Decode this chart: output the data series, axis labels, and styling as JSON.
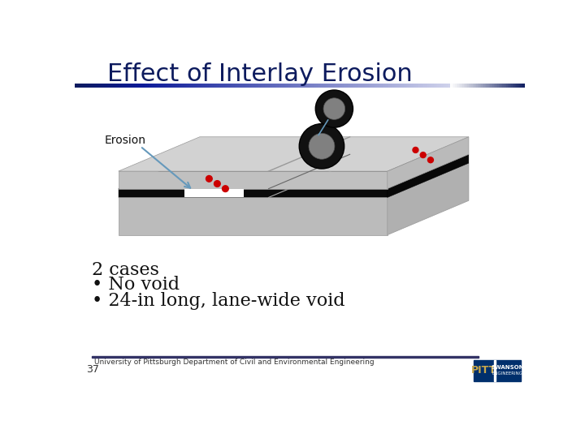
{
  "title": "Effect of Interlay Erosion",
  "title_color": "#0D1B5E",
  "title_fontsize": 22,
  "background_color": "#FFFFFF",
  "footer_text": "University of Pittsburgh Department of Civil and Environmental Engineering",
  "footer_number": "37",
  "body_text_lines": [
    "2 cases",
    "• No void",
    "• 24-in long, lane-wide void"
  ],
  "body_fontsize": 16,
  "erosion_label": "Erosion",
  "red_dot_color": "#CC0000",
  "arrow_color": "#6699BB",
  "pitt_logo_bg": "#002F6C"
}
